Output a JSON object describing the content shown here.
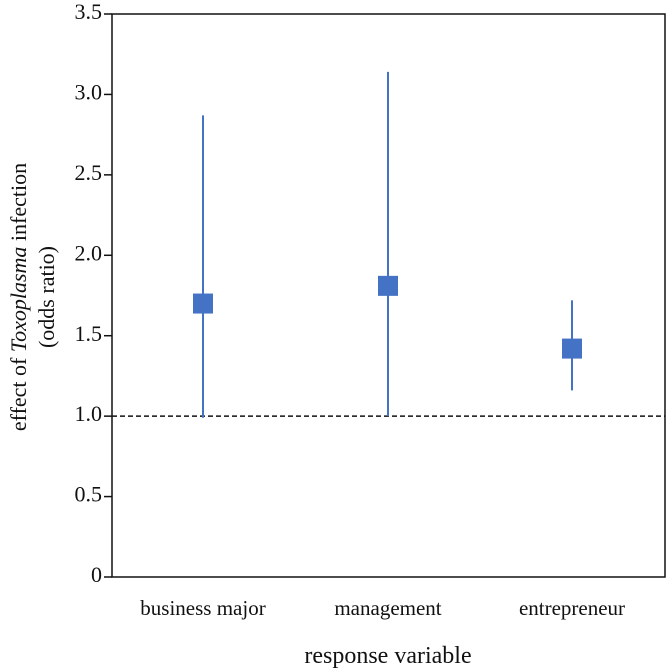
{
  "chart_data": {
    "type": "scatter",
    "categories": [
      "business major",
      "management",
      "entrepreneur"
    ],
    "series": [
      {
        "values": [
          1.7,
          1.81,
          1.42
        ],
        "ci_low": [
          0.99,
          1.0,
          1.16
        ],
        "ci_high": [
          2.87,
          3.14,
          1.72
        ]
      }
    ],
    "xlabel": "response variable",
    "ylabel": {
      "prefix": "effect of ",
      "italic": "Toxoplasma",
      "suffix": " infection",
      "line2": "(odds ratio)"
    },
    "ylim": [
      0,
      3.5
    ],
    "yticks": [
      "0",
      "0.5",
      "1.0",
      "1.5",
      "2.0",
      "2.5",
      "3.0",
      "3.5"
    ],
    "reference_line": 1.0,
    "grid": false,
    "legend": "none",
    "colors": {
      "marker": "#4472c4",
      "reference": "#111111"
    }
  }
}
